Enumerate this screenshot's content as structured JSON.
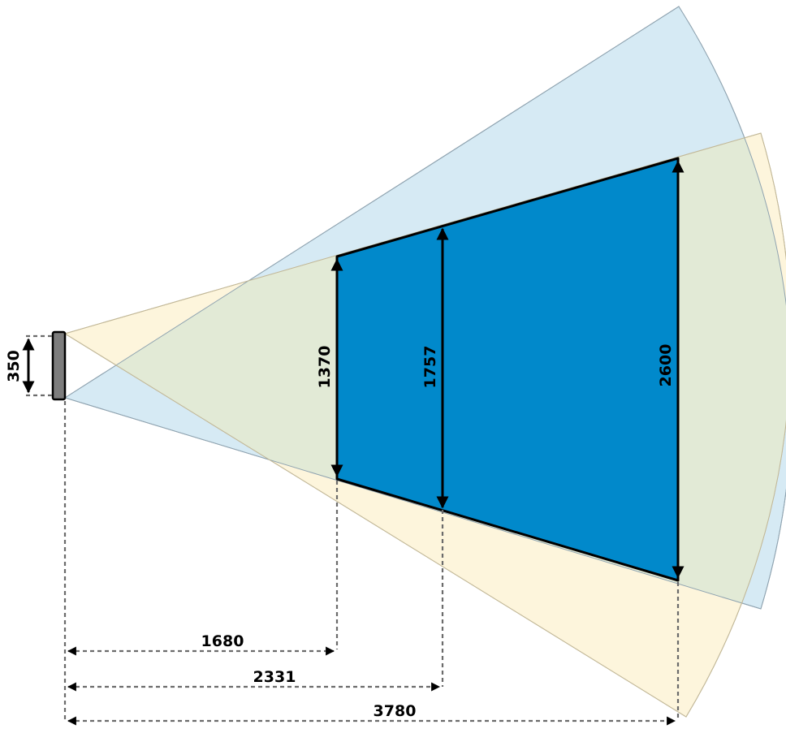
{
  "diagram": {
    "colors": {
      "cone_upper": "#d6eaf4",
      "cone_lower": "#fdf5dc",
      "cone_overlap": "#e2ead6",
      "coverage": "#0189cb",
      "device": "#7d7d7d",
      "dimension": "#000000",
      "guide": "#6b6b6b"
    },
    "device_height": "350",
    "heights": [
      "1370",
      "1757",
      "2600"
    ],
    "distances": [
      "1680",
      "2331",
      "3780"
    ]
  }
}
